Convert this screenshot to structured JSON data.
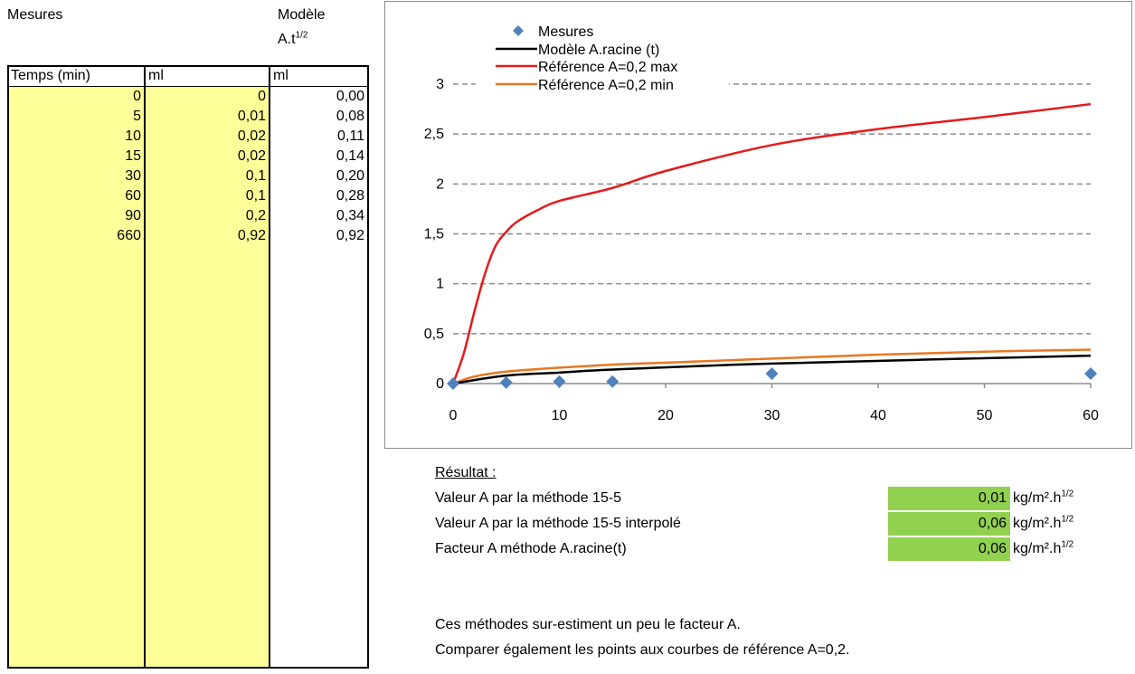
{
  "headers": {
    "mesures": "Mesures",
    "modele_line1": "Modèle",
    "modele_line2_base": "A.t",
    "modele_line2_sup": "1/2"
  },
  "table": {
    "columns": [
      "Temps (min)",
      "ml",
      "ml"
    ],
    "rows": [
      [
        "0",
        "0",
        "0,00"
      ],
      [
        "5",
        "0,01",
        "0,08"
      ],
      [
        "10",
        "0,02",
        "0,11"
      ],
      [
        "15",
        "0,02",
        "0,14"
      ],
      [
        "30",
        "0,1",
        "0,20"
      ],
      [
        "60",
        "0,1",
        "0,28"
      ],
      [
        "90",
        "0,2",
        "0,34"
      ],
      [
        "660",
        "0,92",
        "0,92"
      ]
    ]
  },
  "colors": {
    "yellow": "#ffff99",
    "green": "#92d050",
    "mesures": "#4f81bd",
    "modele": "#000000",
    "ref_max": "#e41a1c",
    "ref_min": "#e87722"
  },
  "chart_data": {
    "type": "line",
    "title": "",
    "xlabel": "",
    "ylabel": "",
    "xlim": [
      0,
      60
    ],
    "ylim": [
      0,
      3
    ],
    "x_ticks": [
      "0",
      "10",
      "20",
      "30",
      "40",
      "50",
      "60"
    ],
    "y_ticks": [
      "0",
      "0,5",
      "1",
      "1,5",
      "2",
      "2,5",
      "3"
    ],
    "grid": "horizontal-dashed",
    "legend_position": "top-left",
    "series": [
      {
        "name": "Mesures",
        "kind": "scatter",
        "marker": "diamond",
        "x": [
          0,
          5,
          10,
          15,
          30,
          60
        ],
        "y": [
          0,
          0.01,
          0.02,
          0.02,
          0.1,
          0.1
        ]
      },
      {
        "name": "Modèle A.racine (t)",
        "kind": "line",
        "x": [
          0,
          5,
          10,
          15,
          30,
          60
        ],
        "y": [
          0,
          0.08,
          0.11,
          0.14,
          0.2,
          0.28
        ]
      },
      {
        "name": "Référence A=0,2 max",
        "kind": "line",
        "x": [
          0,
          1,
          2,
          3,
          4,
          5,
          6,
          8,
          10,
          15,
          20,
          30,
          40,
          50,
          60
        ],
        "y": [
          0,
          0.3,
          0.72,
          1.1,
          1.38,
          1.52,
          1.62,
          1.74,
          1.83,
          1.96,
          2.13,
          2.39,
          2.55,
          2.67,
          2.8
        ]
      },
      {
        "name": "Référence A=0,2 min",
        "kind": "line",
        "x": [
          0,
          2,
          5,
          10,
          15,
          20,
          30,
          40,
          50,
          60
        ],
        "y": [
          0,
          0.07,
          0.12,
          0.16,
          0.19,
          0.21,
          0.25,
          0.29,
          0.32,
          0.34
        ]
      }
    ]
  },
  "results": {
    "title": "Résultat :",
    "rows": [
      {
        "label": "Valeur A par la méthode 15-5",
        "value": "0,01",
        "unit_base": "kg/m².h",
        "unit_sup": "1/2"
      },
      {
        "label": "Valeur A par la méthode 15-5 interpolé",
        "value": "0,06",
        "unit_base": "kg/m².h",
        "unit_sup": "1/2"
      },
      {
        "label": "Facteur A méthode A.racine(t)",
        "value": "0,06",
        "unit_base": "kg/m².h",
        "unit_sup": "1/2"
      }
    ],
    "note1": "Ces méthodes sur-estiment un peu le facteur A.",
    "note2": "Comparer également les points aux courbes de référence A=0,2."
  }
}
